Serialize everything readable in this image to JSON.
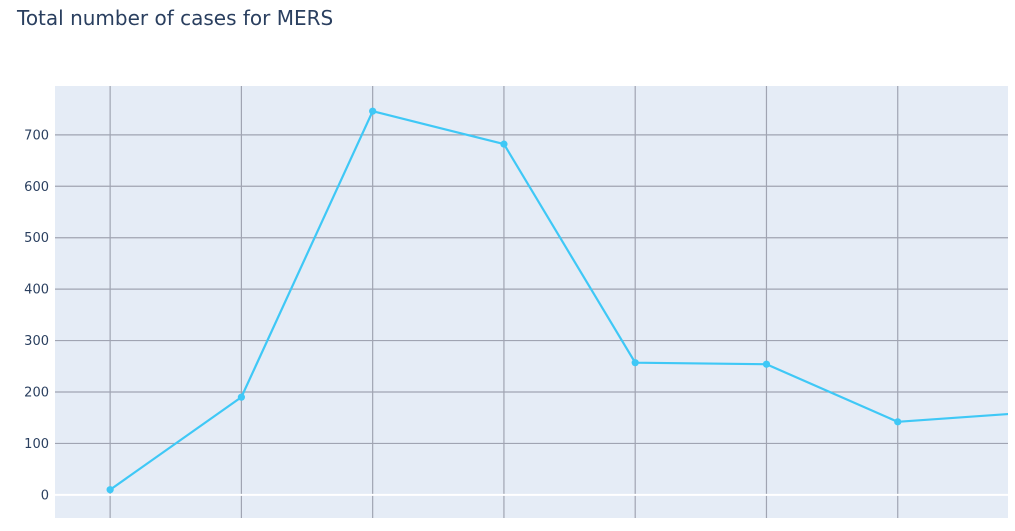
{
  "chart_data": {
    "type": "line",
    "title": "Total number of cases for MERS",
    "xlabel": "",
    "ylabel": "",
    "x": [
      0,
      1,
      2,
      3,
      4,
      5,
      6,
      7
    ],
    "series": [
      {
        "values": [
          10,
          190,
          746,
          682,
          257,
          254,
          142,
          160
        ],
        "color": "#3fc8f6"
      }
    ],
    "ylim": [
      -45,
      795
    ],
    "xlim": [
      -0.42,
      6.84
    ],
    "yticks": [
      0,
      100,
      200,
      300,
      400,
      500,
      600,
      700
    ],
    "ytick_labels": [
      "0",
      "100",
      "200",
      "300",
      "400",
      "500",
      "600",
      "700"
    ],
    "grid": true,
    "background_color": "#e5ecf6",
    "gridline_color": "#a0a4b2",
    "zeroline_color": "#ffffff"
  }
}
